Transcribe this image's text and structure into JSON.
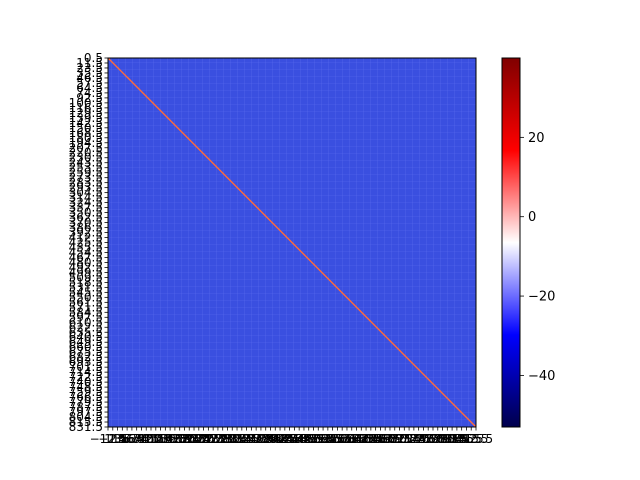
{
  "chart_data": {
    "type": "heatmap",
    "title": "",
    "xlabel": "",
    "ylabel": "",
    "colormap": "seismic",
    "background_value": -25,
    "diagonal_value": 28,
    "color_range": [
      -53,
      40
    ],
    "colorbar_ticks": [
      -40,
      -20,
      0,
      20
    ],
    "colorbar_tick_labels": [
      "−40",
      "−20",
      "0",
      "20"
    ],
    "y_ticks": [
      "0.5",
      "11.5",
      "23.5",
      "35.5",
      "46.5",
      "57.5",
      "64.5",
      "74.5",
      "92.5",
      "100.5",
      "116.5",
      "129.5",
      "139.5",
      "142.5",
      "150.5",
      "168.5",
      "180.5",
      "194.5",
      "207.5",
      "220.5",
      "230.5",
      "243.5",
      "253.5",
      "259.5",
      "273.5",
      "283.5",
      "293.5",
      "304.5",
      "314.5",
      "324.5",
      "337.5",
      "350.5",
      "362.5",
      "370.5",
      "386.5",
      "392.5",
      "412.5",
      "425.5",
      "435.5",
      "454.5",
      "467.5",
      "480.5",
      "492.5",
      "499.5",
      "509.5",
      "518.5",
      "531.5",
      "545.5",
      "550.5",
      "561.5",
      "571.5",
      "584.5",
      "597.5",
      "610.5",
      "622.5",
      "635.5",
      "640.5",
      "649.5",
      "660.5",
      "675.5",
      "682.5",
      "693.5",
      "701.5",
      "714.5",
      "722.5",
      "740.5",
      "748.5",
      "759.5",
      "766.5",
      "779.5",
      "787.5",
      "797.5",
      "804.5",
      "815.5",
      "831.5"
    ],
    "x_ticks": [
      "−12.5",
      "−1.5",
      "11.5",
      "23.5",
      "35.5",
      "46.5",
      "57.5",
      "64.5",
      "74.5",
      "92.5",
      "100.5",
      "116.5",
      "129.5",
      "139.5",
      "142.5",
      "150.5",
      "168.5",
      "180.5",
      "194.5",
      "207.5",
      "220.5",
      "230.5",
      "243.5",
      "253.5",
      "259.5",
      "273.5",
      "283.5",
      "293.5",
      "304.5",
      "314.5",
      "324.5",
      "337.5",
      "350.5",
      "362.5",
      "370.5",
      "386.5",
      "392.5",
      "412.5",
      "425.5",
      "435.5",
      "454.5",
      "467.5",
      "480.5",
      "492.5",
      "499.5",
      "509.5",
      "518.5",
      "531.5",
      "545.5",
      "550.5",
      "561.5",
      "571.5",
      "584.5",
      "597.5",
      "610.5",
      "622.5",
      "635.5",
      "640.5",
      "649.5",
      "660.5",
      "675.5",
      "682.5",
      "693.5",
      "701.5",
      "714.5",
      "722.5",
      "740.5",
      "748.5",
      "759.5",
      "766.5",
      "779.5",
      "787.5",
      "797.5",
      "804.5",
      "815.5",
      "831.5",
      "842.5",
      "855.5"
    ],
    "x_tick_labels_visible": [
      "−12.5",
      "855.5"
    ],
    "y_last_label": "831.5"
  }
}
